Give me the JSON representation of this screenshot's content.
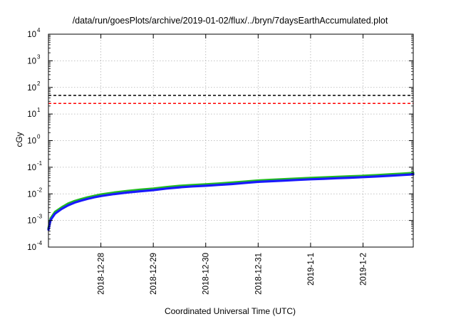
{
  "chart_data": {
    "type": "line",
    "title": "/data/run/goesPlots/archive/2019-01-02/flux/../bryn/7daysEarthAccumulated.plot",
    "xlabel": "Coordinated Universal Time (UTC)",
    "ylabel": "cGy",
    "yscale": "log",
    "ylim": [
      0.0001,
      10000
    ],
    "xlim": [
      "2018-12-27T00:00",
      "2019-01-02T23:00"
    ],
    "x_ticks": [
      {
        "date": "2018-12-28",
        "label": "2018-12-28"
      },
      {
        "date": "2018-12-29",
        "label": "2018-12-29"
      },
      {
        "date": "2018-12-30",
        "label": "2018-12-30"
      },
      {
        "date": "2018-12-31",
        "label": "2018-12-31"
      },
      {
        "date": "2019-01-01",
        "label": "2019-1-1"
      },
      {
        "date": "2019-01-02",
        "label": "2019-1-2"
      }
    ],
    "y_ticks": [
      {
        "value": 0.0001,
        "base": "10",
        "exp": "-4"
      },
      {
        "value": 0.001,
        "base": "10",
        "exp": "-3"
      },
      {
        "value": 0.01,
        "base": "10",
        "exp": "-2"
      },
      {
        "value": 0.1,
        "base": "10",
        "exp": "-1"
      },
      {
        "value": 1,
        "base": "10",
        "exp": "0"
      },
      {
        "value": 10,
        "base": "10",
        "exp": "1"
      },
      {
        "value": 100,
        "base": "10",
        "exp": "2"
      },
      {
        "value": 1000,
        "base": "10",
        "exp": "3"
      },
      {
        "value": 10000,
        "base": "10",
        "exp": "4"
      }
    ],
    "grid": true,
    "reference_lines": [
      {
        "y": 50,
        "color": "#000000",
        "style": "dashed"
      },
      {
        "y": 25,
        "color": "#ff0000",
        "style": "dashed"
      }
    ],
    "series": [
      {
        "color": "#22bb22",
        "x": [
          "2018-12-27T00:00",
          "2018-12-27T01:00",
          "2018-12-27T03:00",
          "2018-12-27T06:00",
          "2018-12-27T09:00",
          "2018-12-27T12:00",
          "2018-12-27T15:00",
          "2018-12-27T18:00",
          "2018-12-27T21:00",
          "2018-12-28T00:00",
          "2018-12-28T06:00",
          "2018-12-28T12:00",
          "2018-12-28T18:00",
          "2018-12-29T00:00",
          "2018-12-29T06:00",
          "2018-12-29T12:00",
          "2018-12-29T18:00",
          "2018-12-30T00:00",
          "2018-12-30T06:00",
          "2018-12-30T12:00",
          "2018-12-30T18:00",
          "2018-12-31T00:00",
          "2018-12-31T06:00",
          "2018-12-31T12:00",
          "2018-12-31T18:00",
          "2019-01-01T00:00",
          "2019-01-01T06:00",
          "2019-01-01T12:00",
          "2019-01-01T18:00",
          "2019-01-02T00:00",
          "2019-01-02T06:00",
          "2019-01-02T12:00",
          "2019-01-02T18:00",
          "2019-01-02T23:00"
        ],
        "values": [
          0.0005,
          0.0012,
          0.0021,
          0.0031,
          0.0043,
          0.0054,
          0.0064,
          0.0074,
          0.0084,
          0.0095,
          0.0112,
          0.0128,
          0.0143,
          0.0157,
          0.018,
          0.02,
          0.0215,
          0.0228,
          0.0245,
          0.0265,
          0.029,
          0.0318,
          0.0338,
          0.0356,
          0.0378,
          0.0398,
          0.0416,
          0.0437,
          0.0457,
          0.0478,
          0.0505,
          0.0538,
          0.0575,
          0.061
        ]
      },
      {
        "color": "#1a1aff",
        "x": [
          "2018-12-27T00:00",
          "2018-12-27T01:00",
          "2018-12-27T03:00",
          "2018-12-27T06:00",
          "2018-12-27T09:00",
          "2018-12-27T12:00",
          "2018-12-27T15:00",
          "2018-12-27T18:00",
          "2018-12-27T21:00",
          "2018-12-28T00:00",
          "2018-12-28T06:00",
          "2018-12-28T12:00",
          "2018-12-28T18:00",
          "2018-12-29T00:00",
          "2018-12-29T06:00",
          "2018-12-29T12:00",
          "2018-12-29T18:00",
          "2018-12-30T00:00",
          "2018-12-30T06:00",
          "2018-12-30T12:00",
          "2018-12-30T18:00",
          "2018-12-31T00:00",
          "2018-12-31T06:00",
          "2018-12-31T12:00",
          "2018-12-31T18:00",
          "2019-01-01T00:00",
          "2019-01-01T06:00",
          "2019-01-01T12:00",
          "2019-01-01T18:00",
          "2019-01-02T00:00",
          "2019-01-02T06:00",
          "2019-01-02T12:00",
          "2019-01-02T18:00",
          "2019-01-02T23:00"
        ],
        "values": [
          0.00045,
          0.00105,
          0.0018,
          0.0027,
          0.0037,
          0.0047,
          0.0056,
          0.0065,
          0.0074,
          0.0083,
          0.0098,
          0.0112,
          0.0125,
          0.0138,
          0.0158,
          0.0176,
          0.019,
          0.0201,
          0.0216,
          0.0234,
          0.0257,
          0.0282,
          0.0299,
          0.0315,
          0.0334,
          0.0352,
          0.0368,
          0.0386,
          0.0404,
          0.0423,
          0.0447,
          0.0477,
          0.051,
          0.054
        ]
      }
    ]
  }
}
